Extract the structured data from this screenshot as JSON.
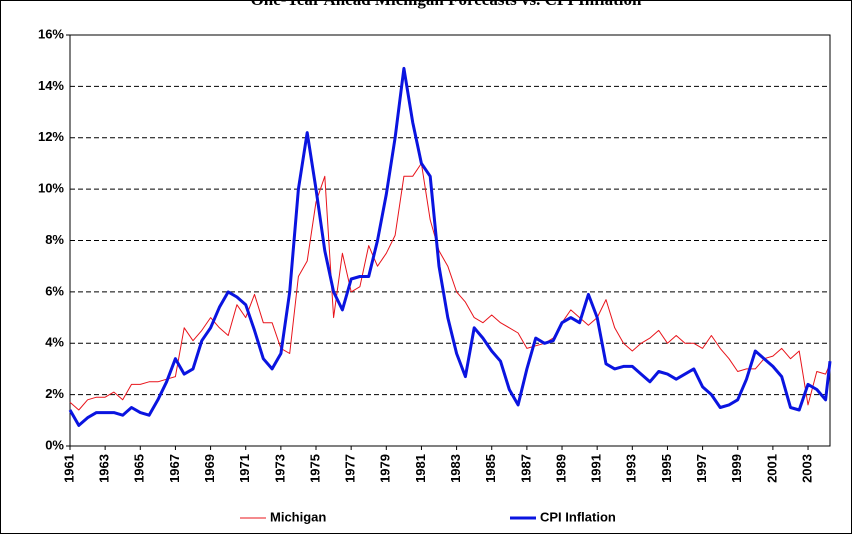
{
  "chart_data": {
    "type": "line",
    "title": "One-Year Ahead Michigan Forecasts vs. CPI Inflation",
    "x": [
      1961,
      1961.5,
      1962,
      1962.5,
      1963,
      1963.5,
      1964,
      1964.5,
      1965,
      1965.5,
      1966,
      1966.5,
      1967,
      1967.5,
      1968,
      1968.5,
      1969,
      1969.5,
      1970,
      1970.5,
      1971,
      1971.5,
      1972,
      1972.5,
      1973,
      1973.5,
      1974,
      1974.5,
      1975,
      1975.5,
      1976,
      1976.5,
      1977,
      1977.5,
      1978,
      1978.5,
      1979,
      1979.5,
      1980,
      1980.5,
      1981,
      1981.5,
      1982,
      1982.5,
      1983,
      1983.5,
      1984,
      1984.5,
      1985,
      1985.5,
      1986,
      1986.5,
      1987,
      1987.5,
      1988,
      1988.5,
      1989,
      1989.5,
      1990,
      1990.5,
      1991,
      1991.5,
      1992,
      1992.5,
      1993,
      1993.5,
      1994,
      1994.5,
      1995,
      1995.5,
      1996,
      1996.5,
      1997,
      1997.5,
      1998,
      1998.5,
      1999,
      1999.5,
      2000,
      2000.5,
      2001,
      2001.5,
      2002,
      2002.5,
      2003,
      2003.5,
      2004,
      2004.25
    ],
    "series": [
      {
        "name": "Michigan",
        "color": "#e8141b",
        "width": 1,
        "values": [
          1.7,
          1.4,
          1.8,
          1.9,
          1.9,
          2.1,
          1.8,
          2.4,
          2.4,
          2.5,
          2.5,
          2.6,
          2.7,
          4.6,
          4.1,
          4.5,
          5.0,
          4.6,
          4.3,
          5.5,
          5.0,
          5.9,
          4.8,
          4.8,
          3.8,
          3.6,
          6.6,
          7.2,
          9.5,
          10.5,
          5.0,
          7.5,
          6.0,
          6.2,
          7.8,
          7.0,
          7.5,
          8.2,
          10.5,
          10.5,
          11.0,
          8.8,
          7.6,
          7.0,
          6.0,
          5.6,
          5.0,
          4.8,
          5.1,
          4.8,
          4.6,
          4.4,
          3.8,
          3.9,
          4.0,
          4.2,
          4.8,
          5.3,
          5.0,
          4.7,
          5.0,
          5.7,
          4.6,
          4.0,
          3.7,
          4.0,
          4.2,
          4.5,
          4.0,
          4.3,
          4.0,
          4.0,
          3.8,
          4.3,
          3.8,
          3.4,
          2.9,
          3.0,
          3.0,
          3.4,
          3.5,
          3.8,
          3.4,
          3.7,
          1.6,
          2.9,
          2.8,
          3.2
        ]
      },
      {
        "name": "CPI Inflation",
        "color": "#0a14e0",
        "width": 3,
        "values": [
          1.4,
          0.8,
          1.1,
          1.3,
          1.3,
          1.3,
          1.2,
          1.5,
          1.3,
          1.2,
          1.8,
          2.5,
          3.4,
          2.8,
          3.0,
          4.1,
          4.6,
          5.4,
          6.0,
          5.8,
          5.5,
          4.5,
          3.4,
          3.0,
          3.6,
          6.0,
          10.0,
          12.2,
          10.0,
          7.6,
          6.0,
          5.3,
          6.5,
          6.6,
          6.6,
          8.0,
          9.8,
          12.0,
          14.7,
          12.6,
          11.0,
          10.5,
          7.0,
          5.0,
          3.6,
          2.7,
          4.6,
          4.2,
          3.7,
          3.3,
          2.2,
          1.6,
          3.0,
          4.2,
          4.0,
          4.1,
          4.8,
          5.0,
          4.8,
          5.9,
          5.0,
          3.2,
          3.0,
          3.1,
          3.1,
          2.8,
          2.5,
          2.9,
          2.8,
          2.6,
          2.8,
          3.0,
          2.3,
          2.0,
          1.5,
          1.6,
          1.8,
          2.6,
          3.7,
          3.4,
          3.1,
          2.7,
          1.5,
          1.4,
          2.4,
          2.2,
          1.8,
          3.3
        ]
      }
    ],
    "xlim": [
      1961,
      2004.25
    ],
    "xticks": [
      1961,
      1963,
      1965,
      1967,
      1969,
      1971,
      1973,
      1975,
      1977,
      1979,
      1981,
      1983,
      1985,
      1987,
      1989,
      1991,
      1993,
      1995,
      1997,
      1999,
      2001,
      2003
    ],
    "ylim": [
      0,
      16
    ],
    "yticks": [
      {
        "value": 0,
        "label": "0%"
      },
      {
        "value": 2,
        "label": "2%"
      },
      {
        "value": 4,
        "label": "4%"
      },
      {
        "value": 6,
        "label": "6%"
      },
      {
        "value": 8,
        "label": "8%"
      },
      {
        "value": 10,
        "label": "10%"
      },
      {
        "value": 12,
        "label": "12%"
      },
      {
        "value": 14,
        "label": "14%"
      },
      {
        "value": 16,
        "label": "16%"
      }
    ],
    "grid": true,
    "legend": "bottom"
  }
}
